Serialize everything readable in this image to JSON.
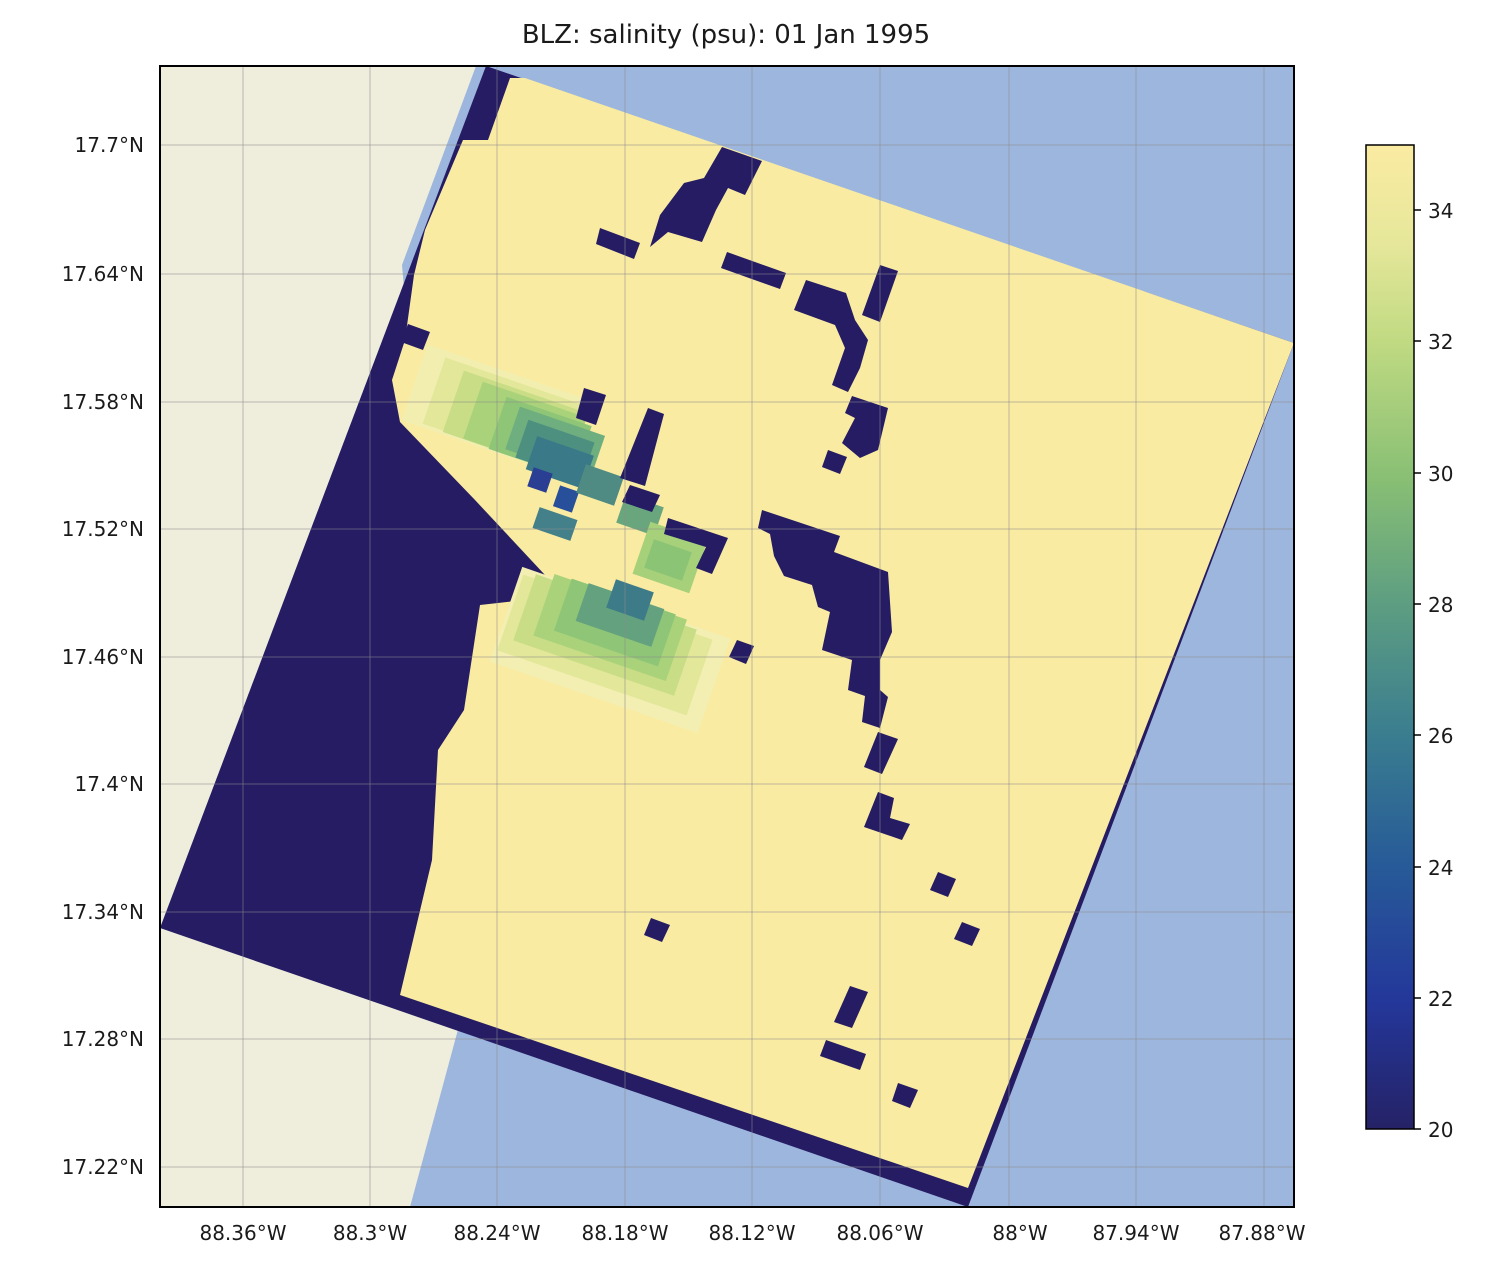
{
  "title": "BLZ: salinity (psu): 01 Jan 1995",
  "map": {
    "lon_ticks": [
      "88.36°W",
      "88.3°W",
      "88.24°W",
      "88.18°W",
      "88.12°W",
      "88.06°W",
      "88°W",
      "87.94°W",
      "87.88°W"
    ],
    "lat_ticks": [
      "17.7°N",
      "17.64°N",
      "17.58°N",
      "17.52°N",
      "17.46°N",
      "17.4°N",
      "17.34°N",
      "17.28°N",
      "17.22°N"
    ],
    "colors": {
      "land": "#efeddc",
      "ocean": "#9db6dd",
      "masked": "#251c63",
      "high_salinity": "#faeba2"
    }
  },
  "colorbar": {
    "ticks": [
      "20",
      "22",
      "24",
      "26",
      "28",
      "30",
      "32",
      "34"
    ],
    "min": 20,
    "max": 35,
    "colormap": "YlGnBu_r"
  }
}
